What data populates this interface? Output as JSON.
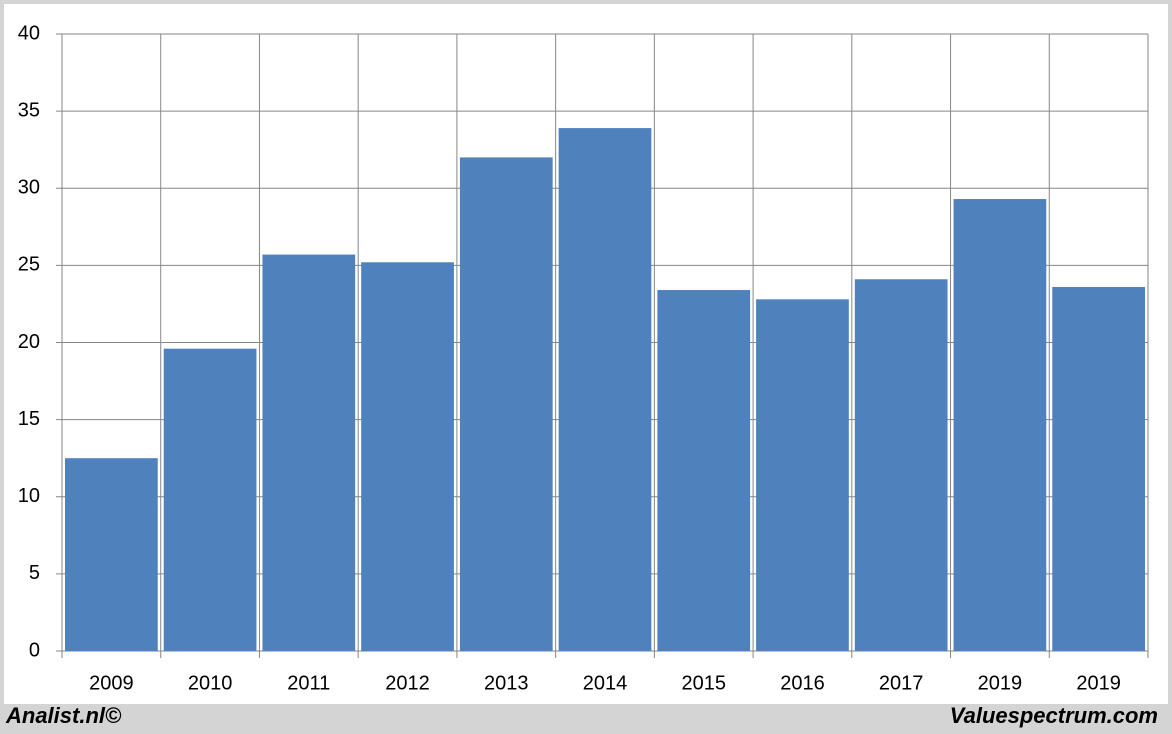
{
  "chart_data": {
    "type": "bar",
    "categories": [
      "2009",
      "2010",
      "2011",
      "2012",
      "2013",
      "2014",
      "2015",
      "2016",
      "2017",
      "2019",
      "2019"
    ],
    "values": [
      12.5,
      19.6,
      25.7,
      25.2,
      32,
      33.9,
      23.4,
      22.8,
      24.1,
      29.3,
      23.6
    ],
    "color": "#4f81bd",
    "ylim": [
      0,
      40
    ],
    "yticks": [
      0,
      5,
      10,
      15,
      20,
      25,
      30,
      35,
      40
    ],
    "grid": true,
    "credits": [
      "Analist.nl©",
      "Valuespectrum.com"
    ]
  }
}
